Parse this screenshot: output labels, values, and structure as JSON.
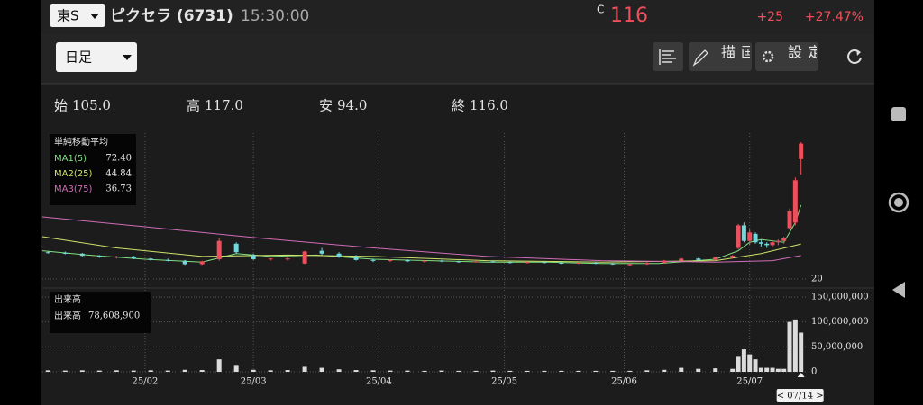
{
  "header": {
    "market": "東S",
    "name": "ピクセラ (6731)",
    "time": "15:30:00",
    "price_prefix": "C",
    "price": 116,
    "change": {
      "value": 25,
      "label": "+25"
    },
    "change_pct": {
      "value": 27.47,
      "label": "+27.47%"
    }
  },
  "toolbar": {
    "period": "日足",
    "draw": "描画",
    "settings": "設定"
  },
  "ohlc": [
    {
      "label": "始",
      "value": 105,
      "value_label": "105.0"
    },
    {
      "label": "高",
      "value": 117,
      "value_label": "117.0"
    },
    {
      "label": "安",
      "value": 94,
      "value_label": "94.0"
    },
    {
      "label": "終",
      "value": 116,
      "value_label": "116.0"
    }
  ],
  "chart_data": {
    "type": "candlestick",
    "x": [
      -7,
      -4,
      -1,
      2,
      5,
      8,
      11,
      14,
      17,
      20,
      23,
      26,
      29,
      32,
      35,
      38,
      41,
      44,
      47,
      50,
      53,
      56,
      59,
      62,
      65,
      68,
      71,
      74,
      77,
      80,
      83,
      86,
      89,
      92,
      95,
      98,
      101,
      104,
      107,
      110,
      113,
      114,
      115,
      116,
      117,
      118,
      119,
      120,
      121,
      122,
      123,
      124,
      125
    ],
    "open": [
      39,
      38.5,
      38,
      36.5,
      35.5,
      36,
      34.5,
      33.5,
      33,
      30.5,
      34,
      45,
      37,
      34,
      34,
      31,
      40,
      38,
      36,
      33.5,
      33,
      33.5,
      32.5,
      33,
      32.5,
      32,
      32.5,
      32,
      31.5,
      32,
      31.5,
      31,
      31.5,
      31,
      30.5,
      30.5,
      31.5,
      33,
      34.5,
      33.5,
      35.5,
      42,
      58,
      47,
      52,
      46,
      45,
      44,
      46,
      47,
      56,
      60,
      105
    ],
    "high": [
      40,
      39.5,
      38.5,
      37,
      36.5,
      36.5,
      35,
      34.5,
      33.5,
      33,
      49,
      46,
      38,
      35,
      35.5,
      40,
      42,
      39,
      37,
      34.5,
      34,
      34,
      33.5,
      33.5,
      33,
      33,
      33,
      32.5,
      32.5,
      32.5,
      32,
      32,
      32,
      31.5,
      31,
      32,
      33.5,
      35,
      35,
      36,
      37,
      59,
      60,
      55,
      53,
      48,
      46,
      47,
      48,
      50,
      70,
      92,
      117
    ],
    "low": [
      38,
      37.5,
      36,
      35,
      34.5,
      34,
      33,
      32.5,
      30,
      30,
      33,
      38,
      33.5,
      33,
      33,
      30.5,
      37,
      35,
      33,
      32,
      32,
      32,
      31.5,
      32,
      31.5,
      31.5,
      31.5,
      31,
      31,
      31,
      30.5,
      30.5,
      30.5,
      30,
      29.5,
      30,
      31,
      32.5,
      33,
      33,
      34.5,
      41,
      46,
      44,
      45,
      43,
      42,
      43,
      44,
      45,
      55,
      58,
      94
    ],
    "close": [
      38.5,
      38,
      36.5,
      35.5,
      36,
      34.5,
      33.5,
      33,
      30.5,
      32.5,
      47,
      39,
      34,
      34.5,
      34.5,
      39.5,
      38,
      36,
      33.5,
      33,
      33.5,
      32.5,
      33,
      32.5,
      32,
      32.5,
      32,
      31.5,
      32,
      31.5,
      31,
      31.5,
      31,
      30.5,
      30.5,
      31.5,
      33,
      34.5,
      33.5,
      35.5,
      36.5,
      58,
      47,
      53,
      46,
      45,
      44,
      46,
      47,
      49,
      68,
      90,
      116
    ],
    "xlim": [
      -8,
      126
    ],
    "xticks": [
      {
        "value": 10,
        "label": "25/02"
      },
      {
        "value": 29,
        "label": "25/03"
      },
      {
        "value": 51,
        "label": "25/04"
      },
      {
        "value": 73,
        "label": "25/05"
      },
      {
        "value": 94,
        "label": "25/06"
      },
      {
        "value": 116,
        "label": "25/07"
      }
    ],
    "ylim": [
      16.8,
      123.4
    ],
    "yticks": [
      20
    ],
    "up_color": "#ee4f5c",
    "down_color": "#72d8dc",
    "grid": true,
    "ma_title": "単純移動平均",
    "ma": [
      {
        "name": "MA1(5)",
        "color": "#7fe07f",
        "value": 72.4,
        "value_label": "72.40",
        "x": [
          -8,
          0,
          10,
          20,
          26,
          32,
          40,
          50,
          60,
          70,
          80,
          90,
          100,
          110,
          114,
          116,
          118,
          120,
          122,
          124,
          125
        ],
        "values": [
          40,
          37,
          34,
          32,
          38,
          36,
          37,
          34,
          33,
          32,
          32,
          31,
          31,
          34,
          40,
          46,
          48,
          47,
          46,
          60,
          72.4
        ]
      },
      {
        "name": "MA2(25)",
        "color": "#cde36a",
        "value": 44.84,
        "value_label": "44.84",
        "x": [
          -8,
          5,
          20,
          35,
          50,
          70,
          90,
          110,
          118,
          125
        ],
        "values": [
          50,
          42,
          36,
          37,
          36,
          33,
          32,
          33,
          38,
          44.8
        ]
      },
      {
        "name": "MA3(75)",
        "color": "#d06cb8",
        "value": 36.73,
        "value_label": "36.73",
        "x": [
          -8,
          10,
          30,
          50,
          70,
          90,
          110,
          120,
          125
        ],
        "values": [
          64,
          57,
          49,
          42,
          36,
          33,
          32,
          33,
          36.7
        ]
      }
    ],
    "volume": {
      "title": "出来高",
      "label": "出来高",
      "value": 78608900,
      "value_label": "78,608,900",
      "color": "#dcdcdc",
      "values": [
        3000000,
        2500000,
        3000000,
        2500000,
        3000000,
        2500000,
        3000000,
        2500000,
        4000000,
        3500000,
        25000000,
        12000000,
        4000000,
        3000000,
        3500000,
        10000000,
        8000000,
        5000000,
        3500000,
        3000000,
        2500000,
        2500000,
        2000000,
        2500000,
        2000000,
        2000000,
        2500000,
        2000000,
        2000000,
        2000000,
        2000000,
        2000000,
        2000000,
        2000000,
        2000000,
        3000000,
        4000000,
        8000000,
        6000000,
        7000000,
        6000000,
        30000000,
        45000000,
        35000000,
        25000000,
        8000000,
        8000000,
        8000000,
        6000000,
        6000000,
        100000000,
        105000000,
        78608900
      ],
      "ylim": [
        0,
        159000000
      ],
      "yticks": [
        0,
        {
          "value": 50000000,
          "label": "50,000,000"
        },
        {
          "value": 100000000,
          "label": "100,000,000"
        },
        {
          "value": 150000000,
          "label": "150,000,000"
        }
      ]
    },
    "cursor_label": "< 07/14 >"
  }
}
